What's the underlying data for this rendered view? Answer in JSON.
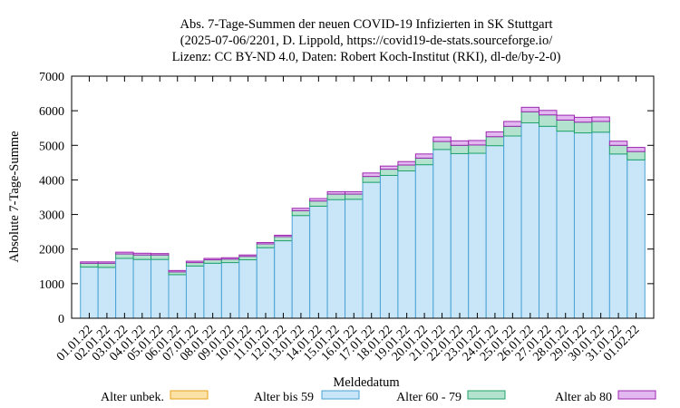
{
  "chart_data": {
    "type": "bar",
    "stacked": true,
    "title": [
      "Abs. 7-Tage-Summen der neuen COVID-19 Infizierten in SK Stuttgart",
      "(2025-07-06/2201, D. Lippold, https://covid19-de-stats.sourceforge.io/",
      "Lizenz: CC BY-ND 4.0, Daten: Robert Koch-Institut (RKI), dl-de/by-2-0)"
    ],
    "xlabel": "Meldedatum",
    "ylabel": "Absolute 7-Tage-Summe",
    "ylim": [
      0,
      7000
    ],
    "yticks": [
      0,
      1000,
      2000,
      3000,
      4000,
      5000,
      6000,
      7000
    ],
    "grid": false,
    "legend_position": "bottom",
    "categories": [
      "01.01.22",
      "02.01.22",
      "03.01.22",
      "04.01.22",
      "05.01.22",
      "06.01.22",
      "07.01.22",
      "08.01.22",
      "09.01.22",
      "10.01.22",
      "11.01.22",
      "12.01.22",
      "13.01.22",
      "14.01.22",
      "15.01.22",
      "16.01.22",
      "17.01.22",
      "18.01.22",
      "19.01.22",
      "20.01.22",
      "21.01.22",
      "22.01.22",
      "23.01.22",
      "24.01.22",
      "25.01.22",
      "26.01.22",
      "27.01.22",
      "28.01.22",
      "29.01.22",
      "30.01.22",
      "31.01.22",
      "01.02.22"
    ],
    "series": [
      {
        "name": "Alter unbek.",
        "fill": "#fbe2a6",
        "stroke": "#e8a21a",
        "values": [
          0,
          0,
          0,
          0,
          0,
          0,
          0,
          0,
          0,
          0,
          0,
          0,
          0,
          0,
          0,
          0,
          0,
          0,
          0,
          0,
          0,
          0,
          0,
          0,
          0,
          0,
          0,
          0,
          0,
          0,
          0,
          0
        ]
      },
      {
        "name": "Alter bis 59",
        "fill": "#c8e6f8",
        "stroke": "#4aa3d4",
        "values": [
          1480,
          1470,
          1730,
          1700,
          1700,
          1260,
          1510,
          1590,
          1610,
          1690,
          2040,
          2240,
          2970,
          3240,
          3430,
          3440,
          3930,
          4130,
          4260,
          4440,
          4880,
          4760,
          4770,
          4990,
          5270,
          5650,
          5550,
          5410,
          5360,
          5380,
          4750,
          4580
        ]
      },
      {
        "name": "Alter 60 - 79",
        "fill": "#b3e3cf",
        "stroke": "#21a36a",
        "values": [
          110,
          120,
          130,
          130,
          130,
          80,
          100,
          100,
          100,
          100,
          110,
          120,
          140,
          150,
          160,
          150,
          170,
          180,
          170,
          190,
          230,
          240,
          240,
          260,
          280,
          320,
          330,
          320,
          310,
          310,
          250,
          240
        ]
      },
      {
        "name": "Alter ab 80",
        "fill": "#e3b7ef",
        "stroke": "#9c27b0",
        "values": [
          40,
          40,
          50,
          50,
          40,
          40,
          40,
          40,
          40,
          40,
          40,
          40,
          70,
          70,
          70,
          70,
          100,
          90,
          100,
          120,
          130,
          130,
          130,
          140,
          140,
          130,
          130,
          140,
          140,
          130,
          120,
          120
        ]
      }
    ]
  }
}
